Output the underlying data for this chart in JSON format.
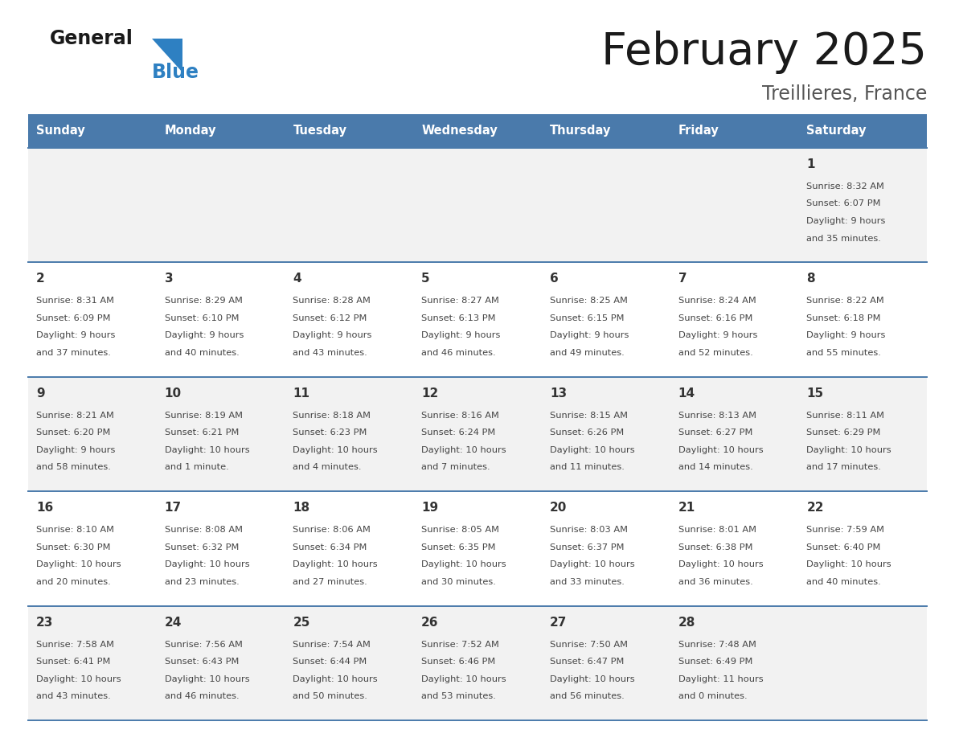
{
  "title": "February 2025",
  "subtitle": "Treillieres, France",
  "days_of_week": [
    "Sunday",
    "Monday",
    "Tuesday",
    "Wednesday",
    "Thursday",
    "Friday",
    "Saturday"
  ],
  "header_bg": "#4a7aab",
  "header_text": "#ffffff",
  "row_bg_odd": "#f2f2f2",
  "row_bg_even": "#ffffff",
  "day_number_color": "#333333",
  "info_text_color": "#444444",
  "border_color": "#4a7aab",
  "title_color": "#1a1a1a",
  "subtitle_color": "#555555",
  "logo_general_color": "#1a1a1a",
  "logo_blue_color": "#2e80c2",
  "calendar": [
    [
      {
        "day": null,
        "info": ""
      },
      {
        "day": null,
        "info": ""
      },
      {
        "day": null,
        "info": ""
      },
      {
        "day": null,
        "info": ""
      },
      {
        "day": null,
        "info": ""
      },
      {
        "day": null,
        "info": ""
      },
      {
        "day": 1,
        "info": "Sunrise: 8:32 AM\nSunset: 6:07 PM\nDaylight: 9 hours\nand 35 minutes."
      }
    ],
    [
      {
        "day": 2,
        "info": "Sunrise: 8:31 AM\nSunset: 6:09 PM\nDaylight: 9 hours\nand 37 minutes."
      },
      {
        "day": 3,
        "info": "Sunrise: 8:29 AM\nSunset: 6:10 PM\nDaylight: 9 hours\nand 40 minutes."
      },
      {
        "day": 4,
        "info": "Sunrise: 8:28 AM\nSunset: 6:12 PM\nDaylight: 9 hours\nand 43 minutes."
      },
      {
        "day": 5,
        "info": "Sunrise: 8:27 AM\nSunset: 6:13 PM\nDaylight: 9 hours\nand 46 minutes."
      },
      {
        "day": 6,
        "info": "Sunrise: 8:25 AM\nSunset: 6:15 PM\nDaylight: 9 hours\nand 49 minutes."
      },
      {
        "day": 7,
        "info": "Sunrise: 8:24 AM\nSunset: 6:16 PM\nDaylight: 9 hours\nand 52 minutes."
      },
      {
        "day": 8,
        "info": "Sunrise: 8:22 AM\nSunset: 6:18 PM\nDaylight: 9 hours\nand 55 minutes."
      }
    ],
    [
      {
        "day": 9,
        "info": "Sunrise: 8:21 AM\nSunset: 6:20 PM\nDaylight: 9 hours\nand 58 minutes."
      },
      {
        "day": 10,
        "info": "Sunrise: 8:19 AM\nSunset: 6:21 PM\nDaylight: 10 hours\nand 1 minute."
      },
      {
        "day": 11,
        "info": "Sunrise: 8:18 AM\nSunset: 6:23 PM\nDaylight: 10 hours\nand 4 minutes."
      },
      {
        "day": 12,
        "info": "Sunrise: 8:16 AM\nSunset: 6:24 PM\nDaylight: 10 hours\nand 7 minutes."
      },
      {
        "day": 13,
        "info": "Sunrise: 8:15 AM\nSunset: 6:26 PM\nDaylight: 10 hours\nand 11 minutes."
      },
      {
        "day": 14,
        "info": "Sunrise: 8:13 AM\nSunset: 6:27 PM\nDaylight: 10 hours\nand 14 minutes."
      },
      {
        "day": 15,
        "info": "Sunrise: 8:11 AM\nSunset: 6:29 PM\nDaylight: 10 hours\nand 17 minutes."
      }
    ],
    [
      {
        "day": 16,
        "info": "Sunrise: 8:10 AM\nSunset: 6:30 PM\nDaylight: 10 hours\nand 20 minutes."
      },
      {
        "day": 17,
        "info": "Sunrise: 8:08 AM\nSunset: 6:32 PM\nDaylight: 10 hours\nand 23 minutes."
      },
      {
        "day": 18,
        "info": "Sunrise: 8:06 AM\nSunset: 6:34 PM\nDaylight: 10 hours\nand 27 minutes."
      },
      {
        "day": 19,
        "info": "Sunrise: 8:05 AM\nSunset: 6:35 PM\nDaylight: 10 hours\nand 30 minutes."
      },
      {
        "day": 20,
        "info": "Sunrise: 8:03 AM\nSunset: 6:37 PM\nDaylight: 10 hours\nand 33 minutes."
      },
      {
        "day": 21,
        "info": "Sunrise: 8:01 AM\nSunset: 6:38 PM\nDaylight: 10 hours\nand 36 minutes."
      },
      {
        "day": 22,
        "info": "Sunrise: 7:59 AM\nSunset: 6:40 PM\nDaylight: 10 hours\nand 40 minutes."
      }
    ],
    [
      {
        "day": 23,
        "info": "Sunrise: 7:58 AM\nSunset: 6:41 PM\nDaylight: 10 hours\nand 43 minutes."
      },
      {
        "day": 24,
        "info": "Sunrise: 7:56 AM\nSunset: 6:43 PM\nDaylight: 10 hours\nand 46 minutes."
      },
      {
        "day": 25,
        "info": "Sunrise: 7:54 AM\nSunset: 6:44 PM\nDaylight: 10 hours\nand 50 minutes."
      },
      {
        "day": 26,
        "info": "Sunrise: 7:52 AM\nSunset: 6:46 PM\nDaylight: 10 hours\nand 53 minutes."
      },
      {
        "day": 27,
        "info": "Sunrise: 7:50 AM\nSunset: 6:47 PM\nDaylight: 10 hours\nand 56 minutes."
      },
      {
        "day": 28,
        "info": "Sunrise: 7:48 AM\nSunset: 6:49 PM\nDaylight: 11 hours\nand 0 minutes."
      },
      {
        "day": null,
        "info": ""
      }
    ]
  ],
  "fig_width": 11.88,
  "fig_height": 9.18,
  "dpi": 100
}
